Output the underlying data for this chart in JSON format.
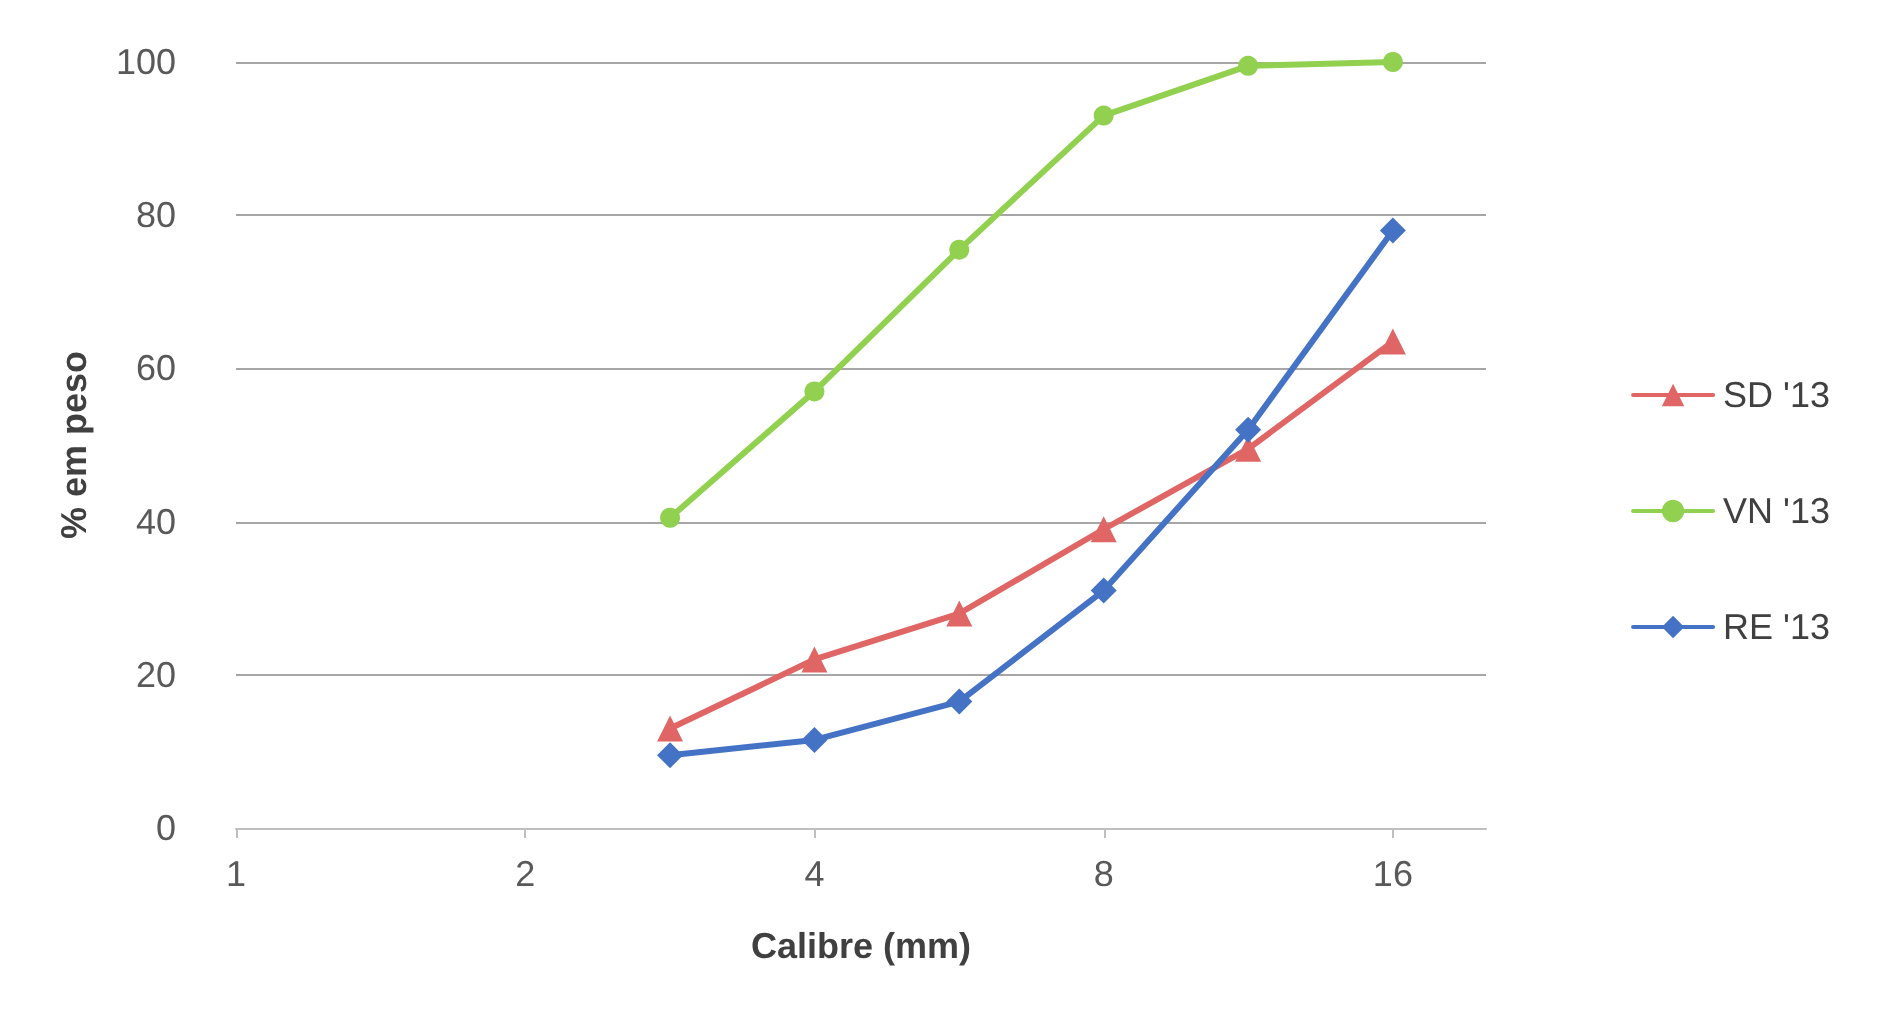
{
  "chart_data": {
    "type": "line",
    "xlabel": "Calibre (mm)",
    "ylabel": "% em peso",
    "x": [
      2.83,
      4,
      5.66,
      8,
      11.31,
      16
    ],
    "series": [
      {
        "name": "SD '13",
        "color": "#e06666",
        "marker": "triangle",
        "values": [
          13,
          22,
          28,
          39,
          49.5,
          63.5
        ]
      },
      {
        "name": "VN '13",
        "color": "#92d050",
        "marker": "circle",
        "values": [
          40.5,
          57,
          75.5,
          93,
          99.5,
          100
        ]
      },
      {
        "name": "RE '13",
        "color": "#4472c4",
        "marker": "diamond",
        "values": [
          9.5,
          11.5,
          16.5,
          31,
          52,
          78
        ]
      }
    ],
    "log": "x",
    "xlim": [
      1,
      20
    ],
    "xticks": [
      1,
      2,
      4,
      8,
      16
    ],
    "ylim": [
      0,
      100
    ],
    "yticks": [
      0,
      20,
      40,
      60,
      80,
      100
    ],
    "grid": "y",
    "legend": "right",
    "line_style": "solid"
  }
}
